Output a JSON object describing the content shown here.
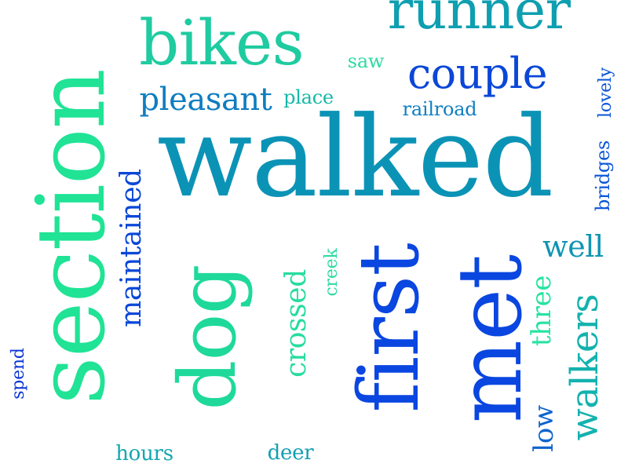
{
  "word_cloud": {
    "words": [
      {
        "id": "walked",
        "text": "walked",
        "color": "#0b93b6",
        "orientation": "horizontal"
      },
      {
        "id": "section",
        "text": "section",
        "color": "#20e396",
        "orientation": "vertical"
      },
      {
        "id": "met",
        "text": "met",
        "color": "#0a46e0",
        "orientation": "vertical"
      },
      {
        "id": "first",
        "text": "first",
        "color": "#0a46e0",
        "orientation": "vertical"
      },
      {
        "id": "dog",
        "text": "dog",
        "color": "#1ed99a",
        "orientation": "vertical"
      },
      {
        "id": "bikes",
        "text": "bikes",
        "color": "#1fcba0",
        "orientation": "horizontal"
      },
      {
        "id": "runner",
        "text": "runner",
        "color": "#0e9fb0",
        "orientation": "horizontal"
      },
      {
        "id": "couple",
        "text": "couple",
        "color": "#0a47d8",
        "orientation": "horizontal"
      },
      {
        "id": "walkers",
        "text": "walkers",
        "color": "#14b2ae",
        "orientation": "vertical"
      },
      {
        "id": "pleasant",
        "text": "pleasant",
        "color": "#0f7dc0",
        "orientation": "horizontal"
      },
      {
        "id": "maintained",
        "text": "maintained",
        "color": "#0a47d8",
        "orientation": "vertical"
      },
      {
        "id": "crossed",
        "text": "crossed",
        "color": "#27dca0",
        "orientation": "vertical"
      },
      {
        "id": "well",
        "text": "well",
        "color": "#0f95b2",
        "orientation": "horizontal"
      },
      {
        "id": "low",
        "text": "low",
        "color": "#0e64cf",
        "orientation": "vertical"
      },
      {
        "id": "three",
        "text": "three",
        "color": "#27e3a0",
        "orientation": "vertical"
      },
      {
        "id": "bridges",
        "text": "bridges",
        "color": "#0a56d8",
        "orientation": "vertical"
      },
      {
        "id": "lovely",
        "text": "lovely",
        "color": "#0a56d8",
        "orientation": "vertical"
      },
      {
        "id": "railroad",
        "text": "railroad",
        "color": "#0e7fc2",
        "orientation": "horizontal"
      },
      {
        "id": "place",
        "text": "place",
        "color": "#14b8a8",
        "orientation": "horizontal"
      },
      {
        "id": "saw",
        "text": "saw",
        "color": "#2ed9a2",
        "orientation": "horizontal"
      },
      {
        "id": "creek",
        "text": "creek",
        "color": "#2ed9a2",
        "orientation": "vertical"
      },
      {
        "id": "spend",
        "text": "spend",
        "color": "#0b35d6",
        "orientation": "vertical"
      },
      {
        "id": "hours",
        "text": "hours",
        "color": "#14a7ae",
        "orientation": "horizontal"
      },
      {
        "id": "deer",
        "text": "deer",
        "color": "#149fb2",
        "orientation": "horizontal"
      }
    ]
  }
}
